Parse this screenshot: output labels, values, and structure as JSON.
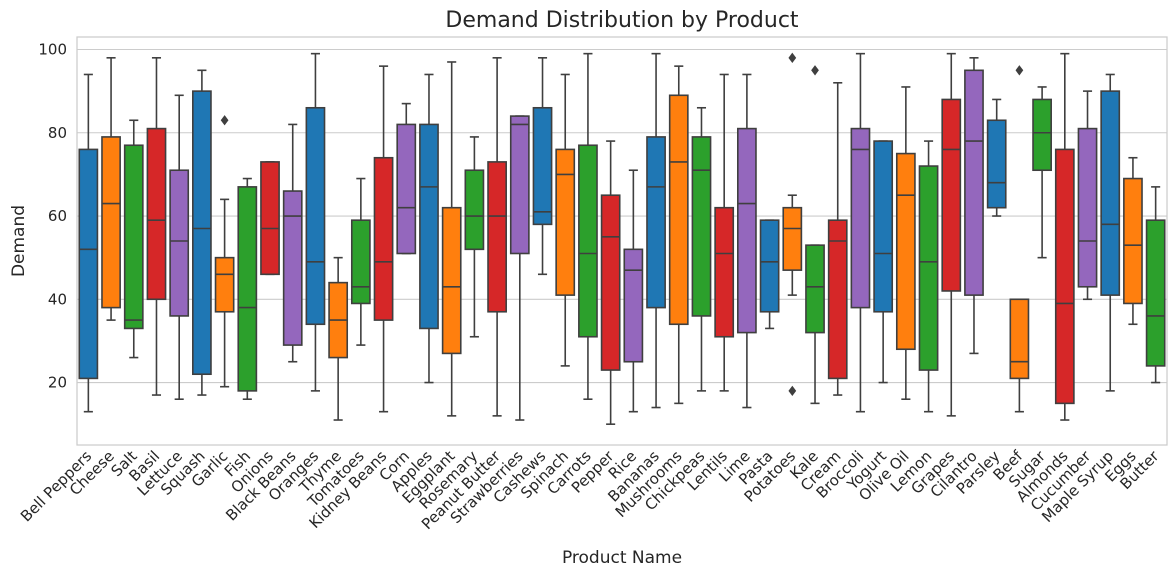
{
  "chart_data": {
    "type": "boxplot",
    "title": "Demand Distribution by Product",
    "xlabel": "Product Name",
    "ylabel": "Demand",
    "ylim": [
      5,
      103
    ],
    "yticks": [
      20,
      40,
      60,
      80,
      100
    ],
    "grid": "horizontal",
    "palette": [
      "#1f77b4",
      "#ff7f0e",
      "#2ca02c",
      "#d62728",
      "#9467bd"
    ],
    "categories": [
      "Bell Peppers",
      "Cheese",
      "Salt",
      "Basil",
      "Lettuce",
      "Squash",
      "Garlic",
      "Fish",
      "Onions",
      "Black Beans",
      "Oranges",
      "Thyme",
      "Tomatoes",
      "Kidney Beans",
      "Corn",
      "Apples",
      "Eggplant",
      "Rosemary",
      "Peanut Butter",
      "Strawberries",
      "Cashews",
      "Spinach",
      "Carrots",
      "Pepper",
      "Rice",
      "Bananas",
      "Mushrooms",
      "Chickpeas",
      "Lentils",
      "Lime",
      "Pasta",
      "Potatoes",
      "Kale",
      "Cream",
      "Broccoli",
      "Yogurt",
      "Olive Oil",
      "Lemon",
      "Grapes",
      "Cilantro",
      "Parsley",
      "Beef",
      "Sugar",
      "Almonds",
      "Cucumber",
      "Maple Syrup",
      "Eggs",
      "Butter"
    ],
    "boxes": [
      {
        "whislo": 13,
        "q1": 21,
        "med": 52,
        "q3": 76,
        "whishi": 94,
        "fliers": []
      },
      {
        "whislo": 35,
        "q1": 38,
        "med": 63,
        "q3": 79,
        "whishi": 98,
        "fliers": []
      },
      {
        "whislo": 26,
        "q1": 33,
        "med": 35,
        "q3": 77,
        "whishi": 83,
        "fliers": []
      },
      {
        "whislo": 17,
        "q1": 40,
        "med": 59,
        "q3": 81,
        "whishi": 98,
        "fliers": []
      },
      {
        "whislo": 16,
        "q1": 36,
        "med": 54,
        "q3": 71,
        "whishi": 89,
        "fliers": []
      },
      {
        "whislo": 17,
        "q1": 22,
        "med": 57,
        "q3": 90,
        "whishi": 95,
        "fliers": []
      },
      {
        "whislo": 19,
        "q1": 37,
        "med": 46,
        "q3": 50,
        "whishi": 64,
        "fliers": [
          83
        ]
      },
      {
        "whislo": 16,
        "q1": 18,
        "med": 38,
        "q3": 67,
        "whishi": 69,
        "fliers": []
      },
      {
        "whislo": 46,
        "q1": 46,
        "med": 57,
        "q3": 73,
        "whishi": 73,
        "fliers": []
      },
      {
        "whislo": 25,
        "q1": 29,
        "med": 60,
        "q3": 66,
        "whishi": 82,
        "fliers": []
      },
      {
        "whislo": 18,
        "q1": 34,
        "med": 49,
        "q3": 86,
        "whishi": 99,
        "fliers": []
      },
      {
        "whislo": 11,
        "q1": 26,
        "med": 35,
        "q3": 44,
        "whishi": 50,
        "fliers": []
      },
      {
        "whislo": 29,
        "q1": 39,
        "med": 43,
        "q3": 59,
        "whishi": 69,
        "fliers": []
      },
      {
        "whislo": 13,
        "q1": 35,
        "med": 49,
        "q3": 74,
        "whishi": 96,
        "fliers": []
      },
      {
        "whislo": 51,
        "q1": 51,
        "med": 62,
        "q3": 82,
        "whishi": 87,
        "fliers": []
      },
      {
        "whislo": 20,
        "q1": 33,
        "med": 67,
        "q3": 82,
        "whishi": 94,
        "fliers": []
      },
      {
        "whislo": 12,
        "q1": 27,
        "med": 43,
        "q3": 62,
        "whishi": 97,
        "fliers": []
      },
      {
        "whislo": 31,
        "q1": 52,
        "med": 60,
        "q3": 71,
        "whishi": 79,
        "fliers": []
      },
      {
        "whislo": 12,
        "q1": 37,
        "med": 60,
        "q3": 73,
        "whishi": 98,
        "fliers": []
      },
      {
        "whislo": 11,
        "q1": 51,
        "med": 82,
        "q3": 84,
        "whishi": 84,
        "fliers": []
      },
      {
        "whislo": 46,
        "q1": 58,
        "med": 61,
        "q3": 86,
        "whishi": 98,
        "fliers": []
      },
      {
        "whislo": 24,
        "q1": 41,
        "med": 70,
        "q3": 76,
        "whishi": 94,
        "fliers": []
      },
      {
        "whislo": 16,
        "q1": 31,
        "med": 51,
        "q3": 77,
        "whishi": 99,
        "fliers": []
      },
      {
        "whislo": 10,
        "q1": 23,
        "med": 55,
        "q3": 65,
        "whishi": 78,
        "fliers": []
      },
      {
        "whislo": 13,
        "q1": 25,
        "med": 47,
        "q3": 52,
        "whishi": 71,
        "fliers": []
      },
      {
        "whislo": 14,
        "q1": 38,
        "med": 67,
        "q3": 79,
        "whishi": 99,
        "fliers": []
      },
      {
        "whislo": 15,
        "q1": 34,
        "med": 73,
        "q3": 89,
        "whishi": 96,
        "fliers": []
      },
      {
        "whislo": 18,
        "q1": 36,
        "med": 71,
        "q3": 79,
        "whishi": 86,
        "fliers": []
      },
      {
        "whislo": 18,
        "q1": 31,
        "med": 51,
        "q3": 62,
        "whishi": 94,
        "fliers": []
      },
      {
        "whislo": 14,
        "q1": 32,
        "med": 63,
        "q3": 81,
        "whishi": 94,
        "fliers": []
      },
      {
        "whislo": 33,
        "q1": 37,
        "med": 49,
        "q3": 59,
        "whishi": 59,
        "fliers": []
      },
      {
        "whislo": 41,
        "q1": 47,
        "med": 57,
        "q3": 62,
        "whishi": 65,
        "fliers": [
          98,
          18
        ]
      },
      {
        "whislo": 15,
        "q1": 32,
        "med": 43,
        "q3": 53,
        "whishi": 53,
        "fliers": [
          95
        ]
      },
      {
        "whislo": 17,
        "q1": 21,
        "med": 54,
        "q3": 59,
        "whishi": 92,
        "fliers": []
      },
      {
        "whislo": 13,
        "q1": 38,
        "med": 76,
        "q3": 81,
        "whishi": 99,
        "fliers": []
      },
      {
        "whislo": 20,
        "q1": 37,
        "med": 51,
        "q3": 78,
        "whishi": 78,
        "fliers": []
      },
      {
        "whislo": 16,
        "q1": 28,
        "med": 65,
        "q3": 75,
        "whishi": 91,
        "fliers": []
      },
      {
        "whislo": 13,
        "q1": 23,
        "med": 49,
        "q3": 72,
        "whishi": 78,
        "fliers": []
      },
      {
        "whislo": 12,
        "q1": 42,
        "med": 76,
        "q3": 88,
        "whishi": 99,
        "fliers": []
      },
      {
        "whislo": 27,
        "q1": 41,
        "med": 78,
        "q3": 95,
        "whishi": 98,
        "fliers": []
      },
      {
        "whislo": 60,
        "q1": 62,
        "med": 68,
        "q3": 83,
        "whishi": 88,
        "fliers": []
      },
      {
        "whislo": 13,
        "q1": 21,
        "med": 25,
        "q3": 40,
        "whishi": 40,
        "fliers": [
          95
        ]
      },
      {
        "whislo": 50,
        "q1": 71,
        "med": 80,
        "q3": 88,
        "whishi": 91,
        "fliers": []
      },
      {
        "whislo": 11,
        "q1": 15,
        "med": 39,
        "q3": 76,
        "whishi": 99,
        "fliers": []
      },
      {
        "whislo": 40,
        "q1": 43,
        "med": 54,
        "q3": 81,
        "whishi": 90,
        "fliers": []
      },
      {
        "whislo": 18,
        "q1": 41,
        "med": 58,
        "q3": 90,
        "whishi": 94,
        "fliers": []
      },
      {
        "whislo": 34,
        "q1": 39,
        "med": 53,
        "q3": 69,
        "whishi": 74,
        "fliers": []
      },
      {
        "whislo": 20,
        "q1": 24,
        "med": 36,
        "q3": 59,
        "whishi": 67,
        "fliers": []
      }
    ]
  }
}
